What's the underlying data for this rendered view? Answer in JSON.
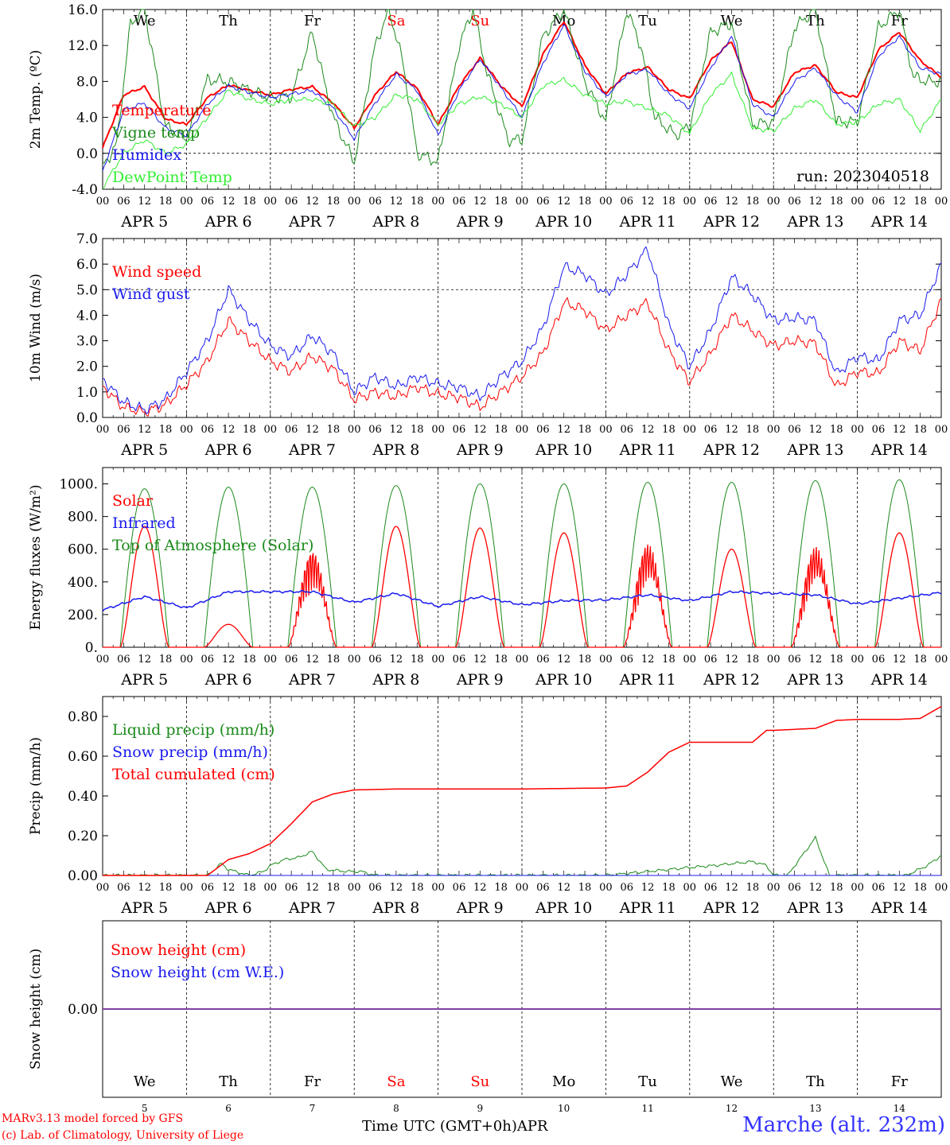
{
  "weekday_labels": [
    "We",
    "Th",
    "Fr",
    "Sa",
    "Su",
    "Mo",
    "Tu",
    "We",
    "Th",
    "Fr"
  ],
  "weekend_index": [
    3,
    4
  ],
  "colors": {
    "red": "#ff0000",
    "green": "#1a8a1a",
    "lightgreen": "#33ee33",
    "blue": "#1a1aee",
    "purple": "#8040a0",
    "weekend": "#ff0000"
  },
  "hour_ticks": [
    "00",
    "06",
    "12",
    "18"
  ],
  "date_labels": [
    "APR  5",
    "APR  6",
    "APR  7",
    "APR  8",
    "APR  9",
    "APR 10",
    "APR 11",
    "APR 12",
    "APR 13",
    "APR 14"
  ],
  "bottom_day_numbers": [
    "5",
    "6",
    "7",
    "8",
    "9",
    "10",
    "11",
    "12",
    "13",
    "14"
  ],
  "bottom_axis_title": "Time UTC (GMT+0h)",
  "bottom_axis_month": "APR",
  "credits": [
    "MARv3.13 model forced by GFS",
    "(c) Lab. of Climatology, University of Liege"
  ],
  "station": "Marche (alt. 232m)",
  "chart_data": [
    {
      "type": "line",
      "ylabel": "2m Temp. (ºC)",
      "ylim": [
        -4.0,
        16.0
      ],
      "yticks": [
        "-4.0",
        "0.0",
        "4.0",
        "8.0",
        "12.0",
        "16.0"
      ],
      "dashed_ref": 0.0,
      "run_label": "run: 2023040518",
      "x_unit": "hours since APR 5 00 UTC",
      "series": [
        {
          "name": "Temperature",
          "color": "red",
          "x": [
            0,
            6,
            12,
            18,
            24,
            30,
            36,
            42,
            48,
            54,
            60,
            66,
            72,
            78,
            84,
            90,
            96,
            102,
            108,
            114,
            120,
            126,
            132,
            138,
            144,
            150,
            156,
            162,
            168,
            174,
            180,
            186,
            192,
            198,
            204,
            210,
            216,
            222,
            228,
            234,
            240
          ],
          "y": [
            0.6,
            6.5,
            7.4,
            3.8,
            3.2,
            6.2,
            7.6,
            7.0,
            6.5,
            7.1,
            7.4,
            5.6,
            2.8,
            6.5,
            9.1,
            7.2,
            3.2,
            7.5,
            10.6,
            7.5,
            5.2,
            11.0,
            14.7,
            9.8,
            6.6,
            8.9,
            9.6,
            7.1,
            6.1,
            10.3,
            12.5,
            6.0,
            5.2,
            9.0,
            9.8,
            6.8,
            6.2,
            11.5,
            13.5,
            10.3,
            8.5
          ]
        },
        {
          "name": "Vigne temp",
          "color": "green",
          "x": [
            0,
            4,
            8,
            12,
            18,
            24,
            30,
            36,
            42,
            48,
            54,
            60,
            64,
            66,
            72,
            78,
            82,
            86,
            90,
            96,
            102,
            106,
            110,
            116,
            120,
            126,
            132,
            138,
            144,
            150,
            154,
            158,
            164,
            168,
            174,
            180,
            186,
            192,
            198,
            204,
            210,
            216,
            222,
            228,
            232,
            236,
            240
          ],
          "y": [
            -1.5,
            1.0,
            14.5,
            16.0,
            3.0,
            1.5,
            8.2,
            8.0,
            7.0,
            6.2,
            6.3,
            13.5,
            7.0,
            4.0,
            -1.0,
            12.0,
            16.0,
            10.0,
            0.0,
            -1.0,
            12.0,
            16.0,
            9.0,
            1.5,
            1.5,
            13.0,
            16.0,
            8.0,
            3.5,
            16.0,
            12.0,
            4.0,
            2.0,
            3.0,
            13.5,
            14.5,
            3.2,
            3.5,
            14.0,
            16.0,
            3.5,
            3.5,
            14.0,
            16.0,
            8.5,
            8.0,
            8.0
          ]
        },
        {
          "name": "Humidex",
          "color": "blue",
          "x": [
            0,
            6,
            12,
            18,
            24,
            30,
            36,
            42,
            48,
            54,
            60,
            66,
            72,
            78,
            84,
            90,
            96,
            102,
            108,
            114,
            120,
            126,
            132,
            138,
            144,
            150,
            156,
            162,
            168,
            174,
            180,
            186,
            192,
            198,
            204,
            210,
            216,
            222,
            228,
            234,
            240
          ],
          "y": [
            -2.0,
            4.8,
            5.6,
            2.8,
            2.0,
            5.5,
            7.5,
            6.8,
            6.2,
            6.6,
            7.0,
            5.0,
            1.6,
            5.6,
            8.8,
            7.0,
            2.0,
            7.0,
            10.5,
            7.3,
            4.0,
            10.0,
            14.3,
            9.2,
            6.3,
            8.8,
            9.3,
            6.6,
            5.0,
            9.5,
            13.0,
            5.5,
            4.0,
            8.0,
            9.5,
            6.4,
            4.6,
            10.8,
            13.0,
            9.5,
            8.8
          ]
        },
        {
          "name": "DewPoint Temp",
          "color": "lightgreen",
          "x": [
            0,
            6,
            12,
            18,
            24,
            30,
            36,
            42,
            48,
            54,
            60,
            66,
            72,
            78,
            84,
            90,
            96,
            102,
            108,
            114,
            120,
            126,
            132,
            138,
            144,
            150,
            156,
            162,
            168,
            174,
            180,
            186,
            192,
            198,
            204,
            210,
            216,
            222,
            228,
            234,
            240
          ],
          "y": [
            -3.8,
            0.0,
            1.5,
            0.0,
            1.0,
            4.0,
            7.0,
            6.0,
            5.5,
            6.0,
            6.0,
            5.5,
            3.0,
            4.0,
            6.5,
            6.0,
            3.2,
            5.5,
            6.3,
            5.5,
            4.0,
            7.5,
            8.2,
            6.5,
            5.5,
            5.8,
            5.0,
            4.2,
            2.2,
            6.5,
            8.8,
            2.8,
            2.5,
            5.0,
            6.0,
            3.2,
            3.5,
            5.5,
            6.0,
            2.5,
            6.0
          ]
        }
      ]
    },
    {
      "type": "line",
      "ylabel": "10m Wind (m/s)",
      "ylim": [
        0.0,
        7.0
      ],
      "yticks": [
        "0.0",
        "1.0",
        "2.0",
        "3.0",
        "4.0",
        "5.0",
        "6.0",
        "7.0"
      ],
      "dashed_ref": 5.0,
      "x_unit": "hours since APR 5 00 UTC",
      "series": [
        {
          "name": "Wind speed",
          "color": "red",
          "x": [
            0,
            6,
            12,
            18,
            24,
            30,
            36,
            42,
            48,
            54,
            60,
            66,
            72,
            78,
            84,
            90,
            96,
            102,
            108,
            114,
            120,
            126,
            132,
            138,
            144,
            150,
            156,
            162,
            168,
            174,
            180,
            186,
            192,
            198,
            204,
            210,
            216,
            222,
            228,
            234,
            240
          ],
          "y": [
            1.2,
            0.4,
            0.2,
            0.5,
            1.3,
            2.2,
            3.8,
            3.0,
            2.2,
            1.8,
            2.4,
            1.9,
            0.7,
            1.0,
            0.8,
            1.2,
            0.9,
            0.8,
            0.4,
            1.0,
            1.6,
            2.5,
            4.5,
            4.2,
            3.4,
            4.0,
            4.5,
            2.6,
            1.4,
            2.5,
            4.0,
            3.4,
            2.8,
            3.0,
            2.9,
            1.2,
            1.8,
            1.7,
            3.0,
            2.6,
            4.6
          ]
        },
        {
          "name": "Wind gust",
          "color": "blue",
          "x": [
            0,
            6,
            12,
            18,
            24,
            30,
            36,
            42,
            48,
            54,
            60,
            66,
            72,
            78,
            84,
            90,
            96,
            102,
            108,
            114,
            120,
            126,
            132,
            138,
            144,
            150,
            156,
            162,
            168,
            174,
            180,
            186,
            192,
            198,
            204,
            210,
            216,
            222,
            228,
            234,
            240
          ],
          "y": [
            1.5,
            0.6,
            0.3,
            0.7,
            1.8,
            3.0,
            5.0,
            3.8,
            2.8,
            2.4,
            3.2,
            2.5,
            1.0,
            1.6,
            1.2,
            1.6,
            1.3,
            1.2,
            0.8,
            1.6,
            2.2,
            3.5,
            5.9,
            5.6,
            4.8,
            5.6,
            6.6,
            3.6,
            2.0,
            3.4,
            5.5,
            4.8,
            3.8,
            3.9,
            3.8,
            1.7,
            2.4,
            2.2,
            3.8,
            4.0,
            6.0
          ]
        }
      ]
    },
    {
      "type": "line",
      "ylabel": "Energy fluxes (W/m²)",
      "ylim": [
        0,
        1100
      ],
      "yticks": [
        "0.",
        "200.",
        "400.",
        "600.",
        "800.",
        "1000."
      ],
      "x_unit": "hours since APR 5 00 UTC",
      "series": [
        {
          "name": "Solar",
          "color": "red",
          "peaks": [
            740,
            140,
            600,
            740,
            730,
            700,
            640,
            600,
            620,
            700
          ]
        },
        {
          "name": "Infrared",
          "color": "blue",
          "x": [
            0,
            12,
            24,
            36,
            48,
            60,
            72,
            84,
            96,
            108,
            120,
            132,
            144,
            156,
            168,
            180,
            192,
            204,
            216,
            228,
            240
          ],
          "y": [
            228,
            310,
            240,
            340,
            340,
            340,
            275,
            330,
            250,
            310,
            260,
            285,
            290,
            320,
            285,
            340,
            330,
            320,
            265,
            300,
            335
          ]
        },
        {
          "name": "Top of Atmosphere (Solar)",
          "color": "green",
          "peaks": [
            970,
            980,
            980,
            990,
            1000,
            1000,
            1010,
            1010,
            1020,
            1025
          ]
        }
      ]
    },
    {
      "type": "line",
      "ylabel": "Precip (mm/h)",
      "ylim": [
        0.0,
        0.9
      ],
      "yticks": [
        "0.00",
        "0.20",
        "0.40",
        "0.60",
        "0.80"
      ],
      "x_unit": "hours since APR 5 00 UTC",
      "series": [
        {
          "name": "Liquid precip (mm/h)",
          "color": "green",
          "x": [
            0,
            30,
            34,
            36,
            38,
            42,
            46,
            48,
            52,
            56,
            60,
            64,
            70,
            74,
            78,
            96,
            144,
            168,
            175,
            186,
            190,
            192,
            196,
            204,
            208,
            230,
            236,
            240
          ],
          "y": [
            0,
            0,
            0.06,
            0.03,
            0.02,
            0.0,
            0.02,
            0.05,
            0.08,
            0.09,
            0.12,
            0.03,
            0.02,
            0.02,
            0.0,
            0,
            0,
            0.04,
            0.05,
            0.07,
            0.05,
            0,
            0,
            0.19,
            0,
            0,
            0.05,
            0.1
          ]
        },
        {
          "name": "Snow precip (mm/h)",
          "color": "blue",
          "x": [
            0,
            240
          ],
          "y": [
            0,
            0
          ]
        },
        {
          "name": "Total cumulated (cm)",
          "color": "red",
          "x": [
            0,
            30,
            36,
            42,
            48,
            54,
            60,
            66,
            72,
            84,
            96,
            120,
            144,
            150,
            156,
            162,
            168,
            180,
            186,
            190,
            192,
            204,
            210,
            216,
            228,
            234,
            240
          ],
          "y": [
            0,
            0,
            0.08,
            0.11,
            0.16,
            0.26,
            0.37,
            0.41,
            0.43,
            0.435,
            0.435,
            0.435,
            0.44,
            0.45,
            0.52,
            0.62,
            0.67,
            0.67,
            0.67,
            0.73,
            0.73,
            0.74,
            0.78,
            0.785,
            0.785,
            0.79,
            0.85
          ]
        }
      ]
    },
    {
      "type": "line",
      "ylabel": "Snow height (cm)",
      "ytick": "0.00",
      "x_unit": "hours since APR 5 00 UTC",
      "series": [
        {
          "name": "Snow height (cm)",
          "color": "red",
          "x": [
            0,
            240
          ],
          "y": [
            0,
            0
          ]
        },
        {
          "name": "Snow height (cm W.E.)",
          "color": "blue",
          "x": [
            0,
            240
          ],
          "y": [
            0,
            0
          ]
        }
      ]
    }
  ]
}
